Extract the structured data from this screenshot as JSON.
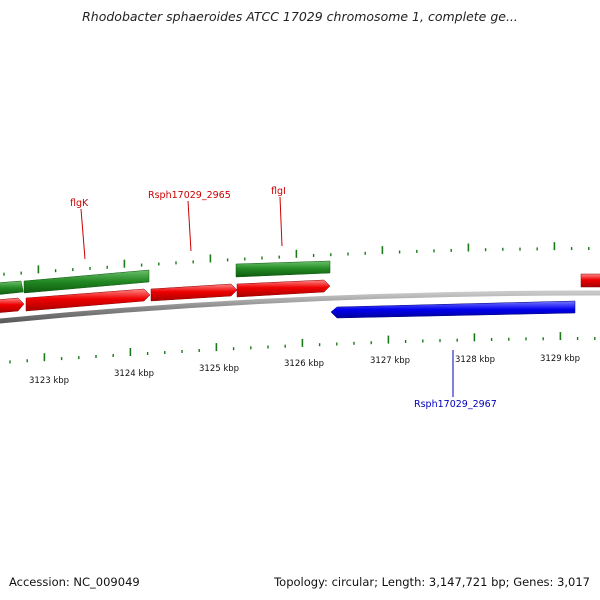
{
  "title": "Rhodobacter sphaeroides ATCC 17029 chromosome 1, complete ge...",
  "footer": {
    "accession": "Accession: NC_009049",
    "summary": "Topology: circular; Length: 3,147,721 bp; Genes: 3,017"
  },
  "colors": {
    "forward_cds": "#ee0000",
    "reverse_cds": "#0000ee",
    "forward_gene": "#228822",
    "forward_label": "#cc0000",
    "reverse_label": "#0000bb",
    "backbone": "#888888",
    "gc_ticks": "#1a7a1a"
  },
  "scale": {
    "ticks": [
      "3123 kbp",
      "3124 kbp",
      "3125 kbp",
      "3126 kbp",
      "3127 kbp",
      "3128 kbp",
      "3129 kbp"
    ]
  },
  "gene_labels": {
    "flgk": "flgK",
    "rsph2965": "Rsph17029_2965",
    "flgl": "flgI",
    "rsph2967": "Rsph17029_2967"
  }
}
